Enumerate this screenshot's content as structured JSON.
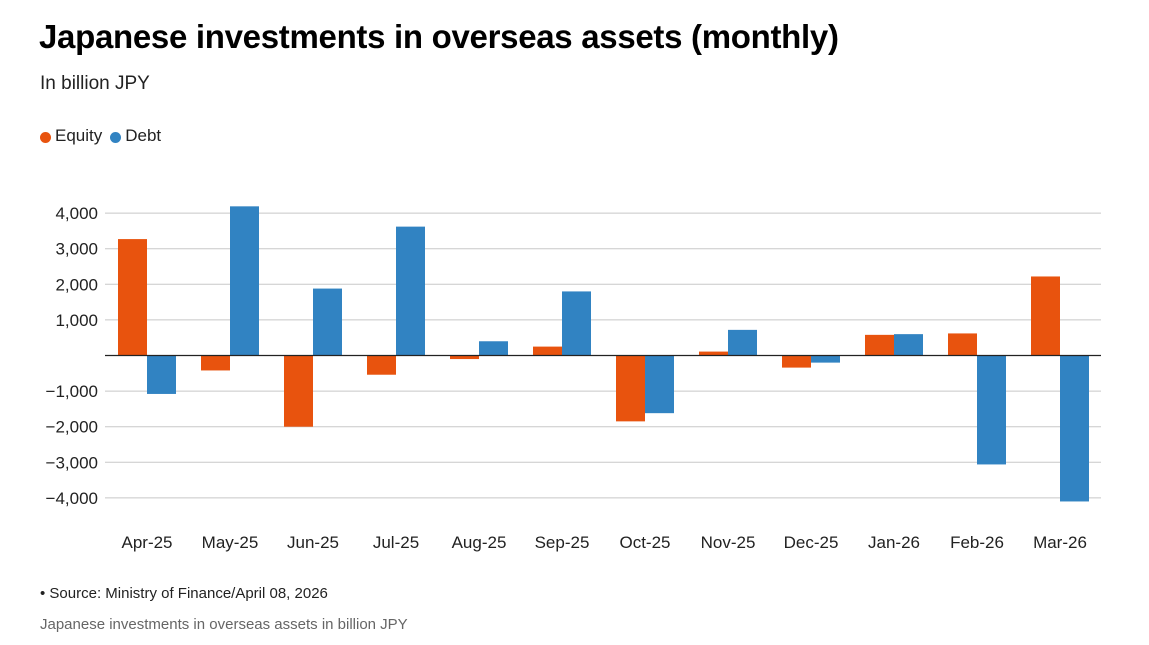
{
  "header": {
    "title": "Japanese investments in overseas assets (monthly)",
    "subtitle": "In billion JPY"
  },
  "legend": [
    {
      "label": "Equity",
      "color": "#e8530e"
    },
    {
      "label": "Debt",
      "color": "#3183c2"
    }
  ],
  "footer": {
    "source": "• Source: Ministry of Finance/April 08, 2026",
    "caption": "Japanese investments in overseas assets in billion JPY"
  },
  "chart_data": {
    "type": "bar",
    "categories": [
      "Apr-25",
      "May-25",
      "Jun-25",
      "Jul-25",
      "Aug-25",
      "Sep-25",
      "Oct-25",
      "Nov-25",
      "Dec-25",
      "Jan-26",
      "Feb-26",
      "Mar-26"
    ],
    "series": [
      {
        "name": "Equity",
        "color": "#e8530e",
        "values": [
          3270,
          -420,
          -2000,
          -540,
          -100,
          250,
          -1850,
          110,
          -340,
          580,
          620,
          2220
        ]
      },
      {
        "name": "Debt",
        "color": "#3183c2",
        "values": [
          -1080,
          4190,
          1880,
          3620,
          400,
          1800,
          -1620,
          720,
          -200,
          600,
          -3060,
          -4100
        ]
      }
    ],
    "ylim": [
      -4000,
      4000
    ],
    "yticks": [
      4000,
      3000,
      2000,
      1000,
      -1000,
      -2000,
      -3000,
      -4000
    ],
    "ytick_labels": [
      "4,000",
      "3,000",
      "2,000",
      "1,000",
      "−1,000",
      "−2,000",
      "−3,000",
      "−4,000"
    ],
    "grid": true,
    "legend_position": "top-left"
  }
}
